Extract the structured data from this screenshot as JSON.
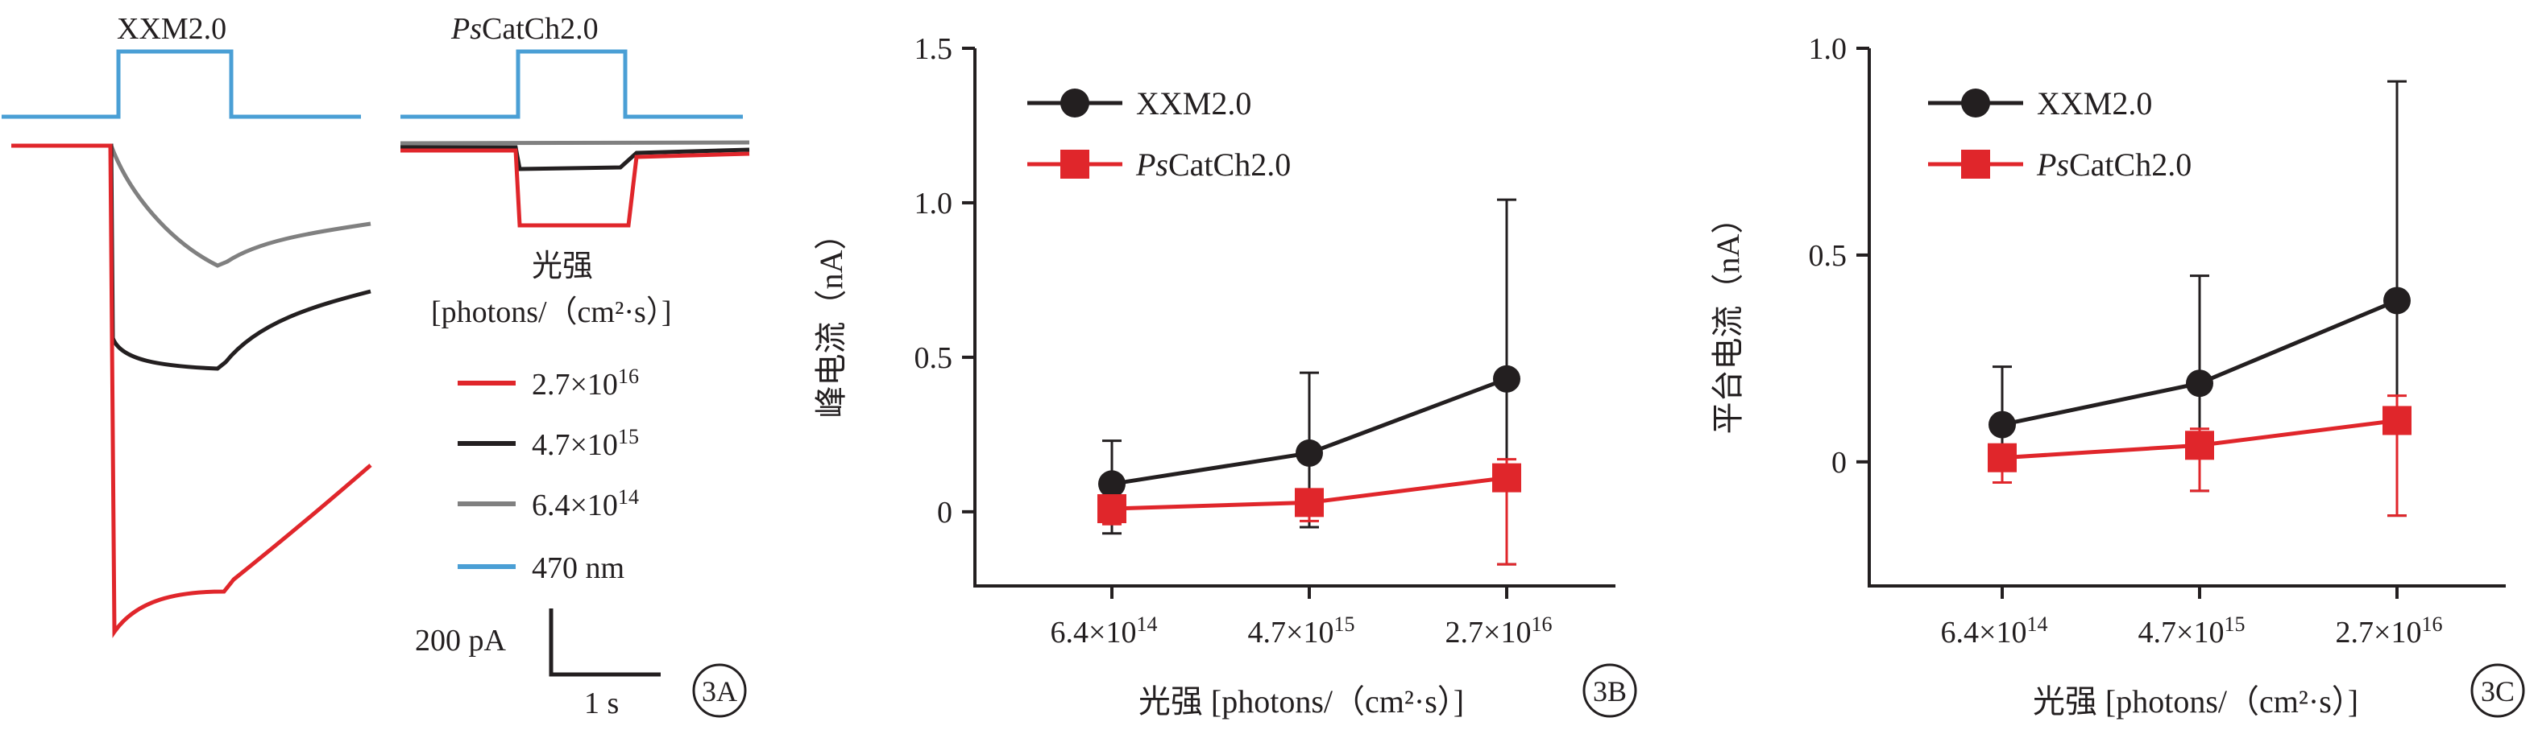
{
  "colors": {
    "red": "#e0262b",
    "black": "#231f20",
    "gray": "#808080",
    "blue": "#4a9fd5",
    "axis": "#231f20"
  },
  "panelA": {
    "titles": [
      "XXM2.0",
      "PsCatCh2.0"
    ],
    "title_italic_prefix": "Ps",
    "title_rest": "CatCh2.0",
    "legend_title_line1": "光强",
    "legend_title_line2": "[photons/（cm²·s）]",
    "legend": [
      {
        "label": "2.7×10",
        "sup": "16",
        "color": "#e0262b"
      },
      {
        "label": "4.7×10",
        "sup": "15",
        "color": "#231f20"
      },
      {
        "label": "6.4×10",
        "sup": "14",
        "color": "#808080"
      },
      {
        "label": "470 nm",
        "sup": "",
        "color": "#4a9fd5"
      }
    ],
    "scale_y": "200 pA",
    "scale_x": "1 s",
    "badge": "3A"
  },
  "chart_data": [
    {
      "type": "line",
      "panel": "3B",
      "xlabel": "光强 [photons/（cm²·s）]",
      "ylabel": "峰电流（nA）",
      "categories": [
        "6.4×10^14",
        "4.7×10^15",
        "2.7×10^16"
      ],
      "ylim": [
        -0.24,
        1.5
      ],
      "yticks": [
        "1.5",
        "1.0",
        "0.5",
        "0"
      ],
      "legend_position": "top-left",
      "series": [
        {
          "name": "XXM2.0",
          "color": "#231f20",
          "marker": "circle",
          "values": [
            0.09,
            0.19,
            0.43
          ],
          "err_low": [
            0.16,
            0.24,
            0.6
          ],
          "err_high": [
            0.14,
            0.26,
            0.58
          ]
        },
        {
          "name": "PsCatCh2.0",
          "color": "#e0262b",
          "marker": "square",
          "values": [
            0.01,
            0.03,
            0.11
          ],
          "err_low": [
            0.05,
            0.06,
            0.28
          ],
          "err_high": [
            0.03,
            0.04,
            0.06
          ]
        }
      ]
    },
    {
      "type": "line",
      "panel": "3C",
      "xlabel": "光强 [photons/（cm²·s）]",
      "ylabel": "平台电流（nA）",
      "categories": [
        "6.4×10^14",
        "4.7×10^15",
        "2.7×10^16"
      ],
      "ylim": [
        -0.3,
        1.0
      ],
      "yticks": [
        "1.0",
        "0.5",
        "0"
      ],
      "legend_position": "top-left",
      "series": [
        {
          "name": "XXM2.0",
          "color": "#231f20",
          "marker": "circle",
          "values": [
            0.09,
            0.19,
            0.39
          ],
          "err_low": [
            0.14,
            0.26,
            0.52
          ],
          "err_high": [
            0.14,
            0.26,
            0.53
          ]
        },
        {
          "name": "PsCatCh2.0",
          "color": "#e0262b",
          "marker": "square",
          "values": [
            0.01,
            0.04,
            0.1
          ],
          "err_low": [
            0.06,
            0.11,
            0.23
          ],
          "err_high": [
            0.03,
            0.04,
            0.06
          ]
        }
      ]
    }
  ]
}
